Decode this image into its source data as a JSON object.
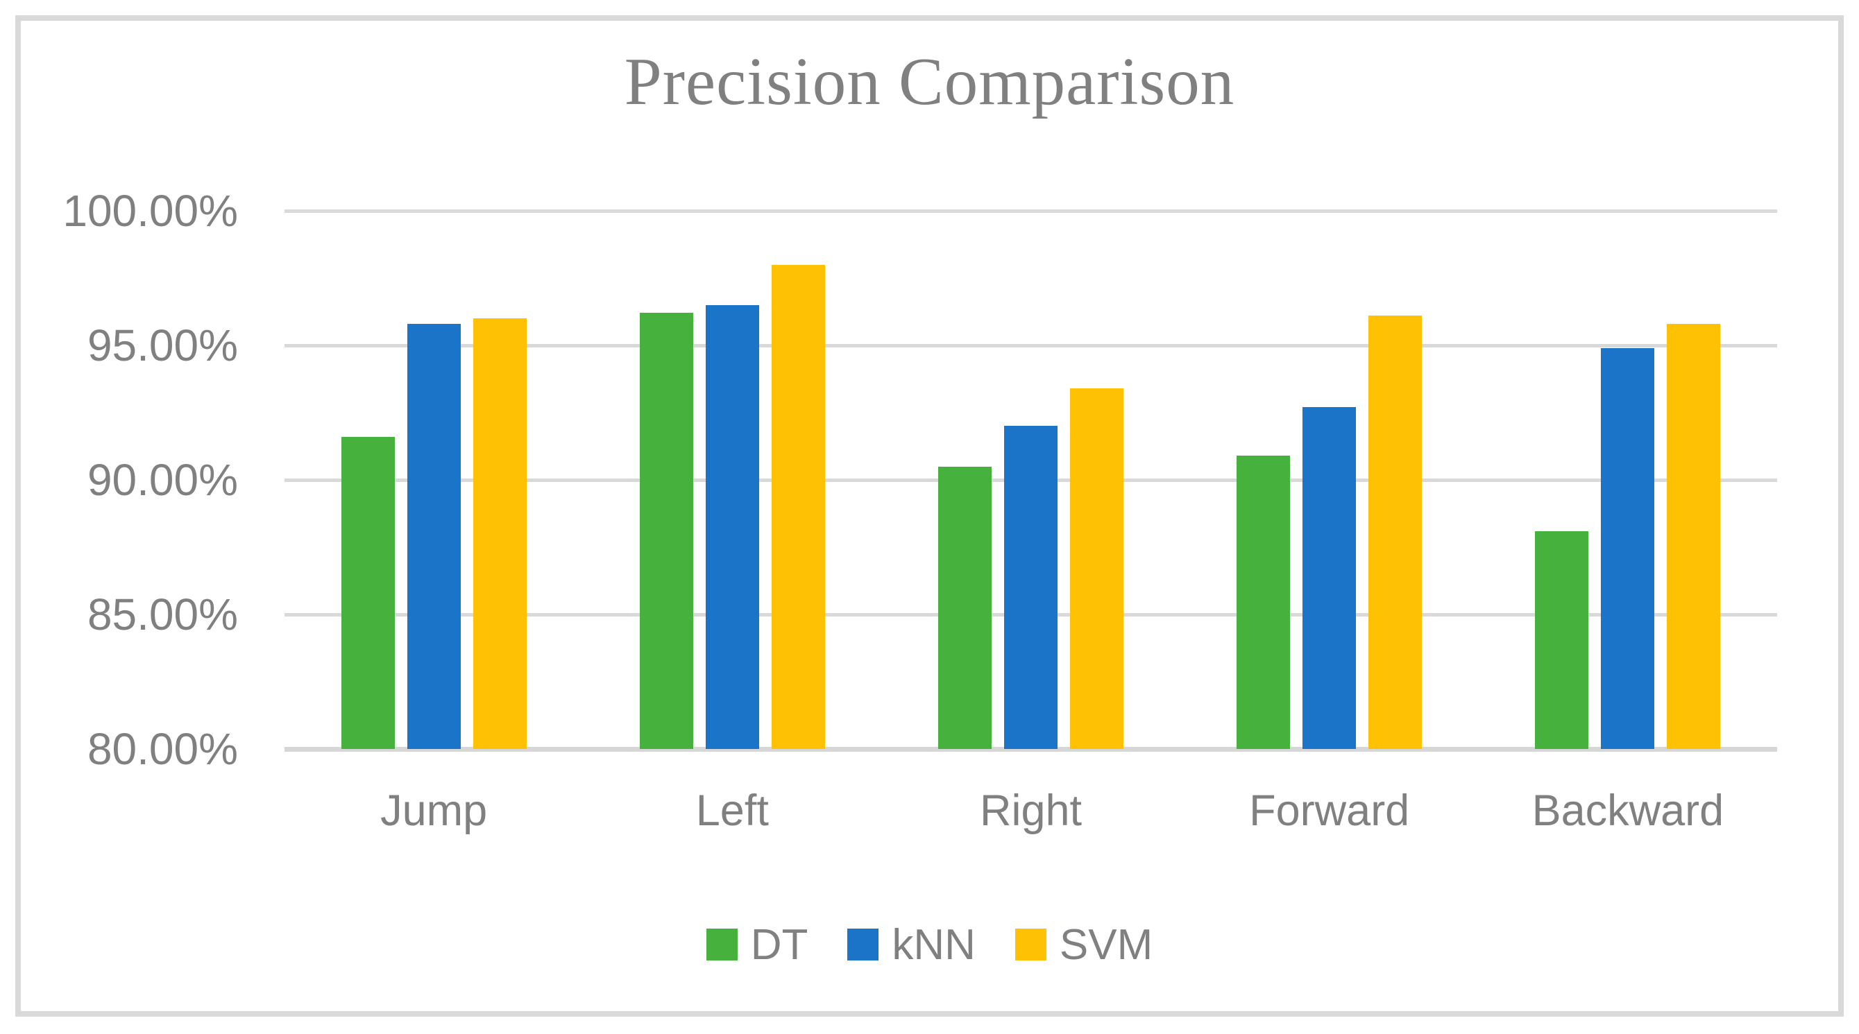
{
  "title": "Precision Comparison",
  "chart_data": {
    "type": "bar",
    "title": "Precision Comparison",
    "xlabel": "",
    "ylabel": "",
    "categories": [
      "Jump",
      "Left",
      "Right",
      "Forward",
      "Backward"
    ],
    "series": [
      {
        "name": "DT",
        "color": "#46B13C",
        "values": [
          91.6,
          96.2,
          90.5,
          90.9,
          88.1
        ]
      },
      {
        "name": "kNN",
        "color": "#1B74C7",
        "values": [
          95.8,
          96.5,
          92.0,
          92.7,
          94.9
        ]
      },
      {
        "name": "SVM",
        "color": "#FFC103",
        "values": [
          96.0,
          98.0,
          93.4,
          96.1,
          95.8
        ]
      }
    ],
    "ylim": [
      80,
      100
    ],
    "y_ticks": [
      {
        "label": "100.00%",
        "value": 100
      },
      {
        "label": "95.00%",
        "value": 95
      },
      {
        "label": "90.00%",
        "value": 90
      },
      {
        "label": "85.00%",
        "value": 85
      },
      {
        "label": "80.00%",
        "value": 80
      }
    ],
    "grid": true,
    "legend_position": "bottom",
    "colors": {
      "gridline": "#d9d9d9",
      "frame_border": "#d9d9d9",
      "text": "#808080"
    }
  }
}
